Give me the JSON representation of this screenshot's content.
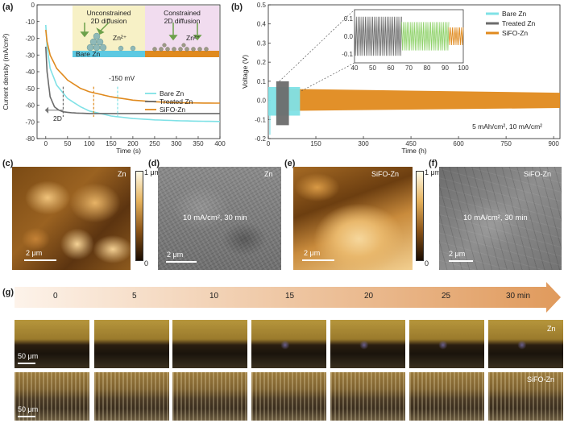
{
  "panels": {
    "a": "(a)",
    "b": "(b)",
    "c": "(c)",
    "d": "(d)",
    "e": "(e)",
    "f": "(f)",
    "g": "(g)"
  },
  "panel_a": {
    "ylabel": "Current density (mA/cm²)",
    "xlabel": "Time (s)",
    "annotation": "-150 mV",
    "label_2d": "2D",
    "inset_left_text": "Unconstrained\n2D diffusion",
    "inset_right_text": "Constrained\n2D diffusion",
    "inset_ion": "Zn²⁺",
    "inset_left_base": "Bare Zn",
    "colors": {
      "bare": "#7fe1e6",
      "treated": "#6b6b6b",
      "sifo": "#e08a1e"
    }
  },
  "panel_b": {
    "ylabel": "Voltage (V)",
    "xlabel": "Time (h)",
    "annotation": "5 mAh/cm², 10 mA/cm²"
  },
  "panel_c": {
    "label": "Zn",
    "scale": "2 μm",
    "cbar_top": "1 μm",
    "cbar_bottom": "0"
  },
  "panel_d": {
    "label": "Zn",
    "scale": "2 μm",
    "condition": "10 mA/cm², 30 min"
  },
  "panel_e": {
    "label": "SiFO-Zn",
    "scale": "2 μm",
    "cbar_top": "1 μm",
    "cbar_bottom": "0"
  },
  "panel_f": {
    "label": "SiFO-Zn",
    "scale": "2 μm",
    "condition": "10 mA/cm², 30 min"
  },
  "panel_g": {
    "times": [
      "0",
      "5",
      "10",
      "15",
      "20",
      "25",
      "30 min"
    ],
    "row1_label": "Zn",
    "row2_label": "SiFO-Zn",
    "scale": "50 μm"
  },
  "chart_data": [
    {
      "type": "line",
      "xlabel": "Time (s)",
      "ylabel": "Current density (mA/cm²)",
      "xlim": [
        -20,
        400
      ],
      "ylim": [
        -80,
        0
      ],
      "xticks": [
        0,
        50,
        100,
        150,
        200,
        250,
        300,
        350,
        400
      ],
      "yticks": [
        0,
        -10,
        -20,
        -30,
        -40,
        -50,
        -60,
        -70,
        -80
      ],
      "legend": "right",
      "series": [
        {
          "name": "Bare Zn",
          "x": [
            0,
            3,
            10,
            25,
            50,
            80,
            100,
            150,
            200,
            250,
            300,
            350,
            400
          ],
          "values": [
            -12,
            -25,
            -38,
            -48,
            -56,
            -61,
            -63.5,
            -66.5,
            -68,
            -68.8,
            -69.3,
            -69.6,
            -69.8
          ]
        },
        {
          "name": "Treated Zn",
          "x": [
            0,
            3,
            10,
            20,
            30,
            40,
            60,
            80,
            100,
            150,
            200,
            300,
            400
          ],
          "values": [
            -25,
            -40,
            -55,
            -61,
            -63,
            -64,
            -64.6,
            -64.8,
            -65,
            -65,
            -65,
            -65,
            -65
          ]
        },
        {
          "name": "SiFO-Zn",
          "x": [
            0,
            3,
            10,
            25,
            50,
            80,
            100,
            150,
            200,
            250,
            300,
            350,
            400
          ],
          "values": [
            -15,
            -22,
            -30,
            -38,
            -45,
            -50,
            -52,
            -55,
            -57,
            -58,
            -58.5,
            -58.7,
            -58.8
          ]
        }
      ],
      "markers": [
        {
          "x": 40,
          "color": "#6b6b6b"
        },
        {
          "x": 110,
          "color": "#e08a1e"
        },
        {
          "x": 165,
          "color": "#7fe1e6"
        }
      ]
    },
    {
      "type": "line",
      "xlabel": "Time (h)",
      "ylabel": "Voltage (V)",
      "xlim": [
        0,
        920
      ],
      "ylim": [
        -0.2,
        0.5
      ],
      "xticks": [
        0,
        150,
        300,
        450,
        600,
        750,
        900
      ],
      "yticks": [
        -0.2,
        -0.1,
        0.0,
        0.1,
        0.2,
        0.3,
        0.4,
        0.5
      ],
      "legend": "top-right",
      "series": [
        {
          "name": "Bare Zn",
          "x": [
            0,
            100
          ],
          "envelope_high": [
            0.07,
            0.07
          ],
          "envelope_low": [
            -0.08,
            -0.08
          ]
        },
        {
          "name": "Treated Zn",
          "x": [
            25,
            65
          ],
          "envelope_high": [
            0.1,
            0.1
          ],
          "envelope_low": [
            -0.13,
            -0.13
          ]
        },
        {
          "name": "SiFO-Zn",
          "x": [
            60,
            920
          ],
          "envelope_high": [
            0.06,
            0.04
          ],
          "envelope_low": [
            -0.055,
            -0.04
          ]
        }
      ],
      "inset": {
        "xlim": [
          40,
          100
        ],
        "ylim": [
          -0.15,
          0.15
        ],
        "xticks": [
          40,
          50,
          60,
          70,
          80,
          90,
          100
        ],
        "yticks": [
          -0.1,
          0.0,
          0.1
        ]
      }
    }
  ]
}
